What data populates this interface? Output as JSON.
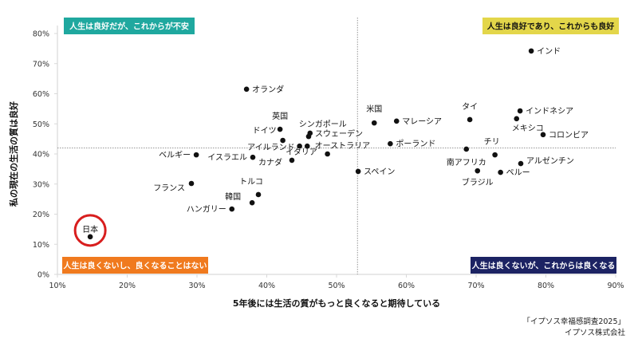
{
  "chart_data": {
    "type": "scatter",
    "xlabel": "5年後には生活の質がもっと良くなると期待している",
    "ylabel": "私の現在の生活の質は良好",
    "xlim": [
      10,
      90
    ],
    "ylim": [
      0,
      80
    ],
    "x_ticks": [
      "10%",
      "20%",
      "30%",
      "40%",
      "50%",
      "60%",
      "70%",
      "80%",
      "90%"
    ],
    "y_ticks": [
      "0%",
      "10%",
      "20%",
      "30%",
      "40%",
      "50%",
      "60%",
      "70%",
      "80%"
    ],
    "reference_lines": {
      "x": 53,
      "y": 42
    },
    "quadrants": [
      {
        "label": "人生は良好だが、これからが不安",
        "position": "top-left",
        "color": "#1fa89f",
        "text_color": "#ffffff"
      },
      {
        "label": "人生は良好であり、これからも良好",
        "position": "top-right",
        "color": "#e3d64a",
        "text_color": "#111111"
      },
      {
        "label": "人生は良くないし、良くなることはない",
        "position": "bottom-left",
        "color": "#f07a1e",
        "text_color": "#ffffff"
      },
      {
        "label": "人生は良くないが、これからは良くなる",
        "position": "bottom-right",
        "color": "#1c2363",
        "text_color": "#ffffff"
      }
    ],
    "highlight": {
      "name": "日本",
      "color": "#d81e1e"
    },
    "points": [
      {
        "name": "インド",
        "x": 77.9,
        "y": 74.2,
        "anchor": "right"
      },
      {
        "name": "オランダ",
        "x": 37.1,
        "y": 61.5,
        "anchor": "right"
      },
      {
        "name": "英国",
        "x": 41.9,
        "y": 48.2,
        "anchor": "top-left"
      },
      {
        "name": "ドイツ",
        "x": 42.3,
        "y": 44.5,
        "anchor": "left-up"
      },
      {
        "name": "シンガポール",
        "x": 46.2,
        "y": 46.9,
        "anchor": "top"
      },
      {
        "name": "スウェーデン",
        "x": 46.0,
        "y": 45.8,
        "anchor": "right"
      },
      {
        "name": "アイルランド",
        "x": 44.7,
        "y": 42.6,
        "anchor": "left"
      },
      {
        "name": "イタリア",
        "x": 45.8,
        "y": 42.6,
        "anchor": "below-left"
      },
      {
        "name": "オーストラリア",
        "x": 48.7,
        "y": 40.0,
        "anchor": "above-right"
      },
      {
        "name": "イスラエル",
        "x": 38.0,
        "y": 38.9,
        "anchor": "left"
      },
      {
        "name": "カナダ",
        "x": 43.6,
        "y": 37.9,
        "anchor": "left-far"
      },
      {
        "name": "ベルギー",
        "x": 29.9,
        "y": 39.7,
        "anchor": "left"
      },
      {
        "name": "フランス",
        "x": 29.2,
        "y": 30.2,
        "anchor": "left-down"
      },
      {
        "name": "トルコ",
        "x": 38.8,
        "y": 26.5,
        "anchor": "top"
      },
      {
        "name": "韓国",
        "x": 37.9,
        "y": 23.8,
        "anchor": "left-far-up"
      },
      {
        "name": "ハンガリー",
        "x": 35.0,
        "y": 21.7,
        "anchor": "left"
      },
      {
        "name": "日本",
        "x": 14.7,
        "y": 12.5,
        "anchor": "top"
      },
      {
        "name": "スペイン",
        "x": 53.1,
        "y": 34.2,
        "anchor": "right"
      },
      {
        "name": "米国",
        "x": 55.4,
        "y": 50.3,
        "anchor": "top"
      },
      {
        "name": "マレーシア",
        "x": 58.6,
        "y": 50.9,
        "anchor": "right"
      },
      {
        "name": "ポーランド",
        "x": 57.7,
        "y": 43.4,
        "anchor": "right"
      },
      {
        "name": "タイ",
        "x": 69.1,
        "y": 51.4,
        "anchor": "top"
      },
      {
        "name": "インドネシア",
        "x": 76.3,
        "y": 54.3,
        "anchor": "right"
      },
      {
        "name": "メキシコ",
        "x": 75.8,
        "y": 51.7,
        "anchor": "below-left"
      },
      {
        "name": "コロンビア",
        "x": 79.6,
        "y": 46.4,
        "anchor": "right"
      },
      {
        "name": "南アフリカ",
        "x": 68.6,
        "y": 41.6,
        "anchor": "below"
      },
      {
        "name": "チリ",
        "x": 72.7,
        "y": 39.7,
        "anchor": "top-left"
      },
      {
        "name": "アルゼンチン",
        "x": 76.4,
        "y": 36.8,
        "anchor": "right-up"
      },
      {
        "name": "ブラジル",
        "x": 70.2,
        "y": 34.4,
        "anchor": "below"
      },
      {
        "name": "ペルー",
        "x": 73.5,
        "y": 33.9,
        "anchor": "right"
      }
    ]
  },
  "source": {
    "line1": "「イプソス幸福感調査2025」",
    "line2": "イプソス株式会社"
  }
}
